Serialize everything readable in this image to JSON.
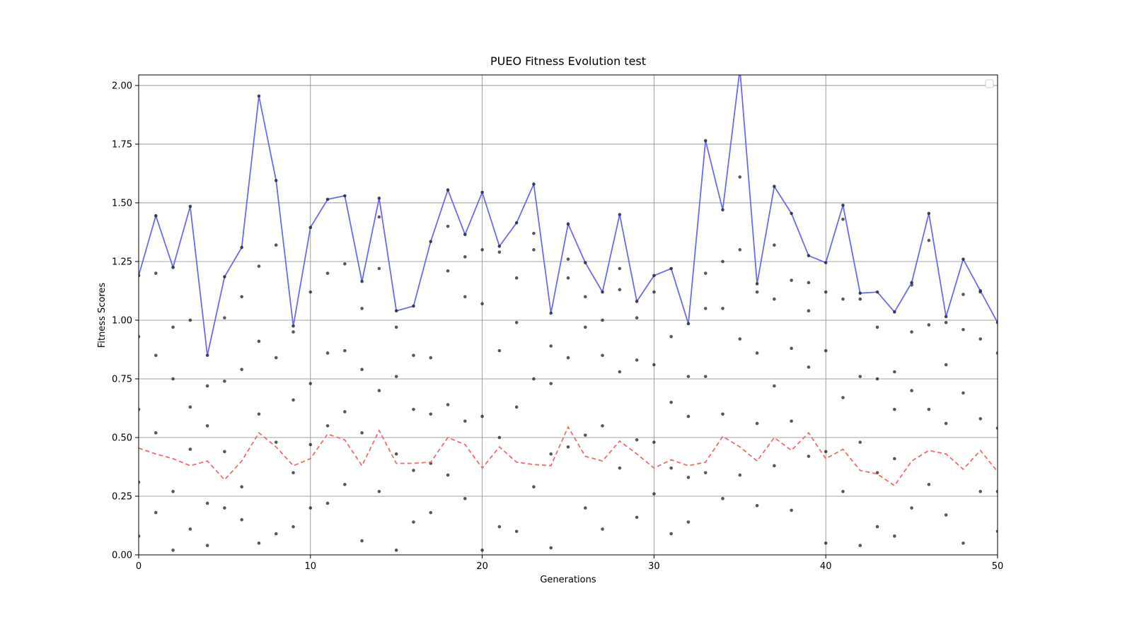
{
  "chart_data": {
    "type": "scatter",
    "title": "PUEO Fitness Evolution test",
    "x_label": "Generations",
    "y_label": "Fitness Scores",
    "xlim": [
      0,
      50
    ],
    "ylim": [
      0,
      2.045
    ],
    "xticks": [
      0,
      10,
      20,
      30,
      40,
      50
    ],
    "yticks": [
      {
        "value": 0,
        "label": "0.00"
      },
      {
        "value": 0.25,
        "label": "0.25"
      },
      {
        "value": 0.5,
        "label": "0.50"
      },
      {
        "value": 0.75,
        "label": "0.75"
      },
      {
        "value": 1,
        "label": "1.00"
      },
      {
        "value": 1.25,
        "label": "1.25"
      },
      {
        "value": 1.5,
        "label": "1.50"
      },
      {
        "value": 1.75,
        "label": "1.75"
      },
      {
        "value": 2,
        "label": "2.00"
      }
    ],
    "grid": true,
    "series": [
      {
        "style": "points",
        "color": "#000000",
        "x": [
          0,
          0,
          0,
          0,
          1,
          1,
          1,
          1,
          2,
          2,
          2,
          2,
          3,
          3,
          3,
          3,
          4,
          4,
          4,
          4,
          5,
          5,
          5,
          5,
          6,
          6,
          6,
          6,
          7,
          7,
          7,
          7,
          8,
          8,
          8,
          8,
          9,
          9,
          9,
          9,
          10,
          10,
          10,
          10,
          11,
          11,
          11,
          11,
          12,
          12,
          12,
          12,
          13,
          13,
          13,
          13,
          14,
          14,
          14,
          14,
          15,
          15,
          15,
          15,
          16,
          16,
          16,
          16,
          17,
          17,
          17,
          17,
          18,
          18,
          18,
          18,
          19,
          19,
          19,
          19,
          20,
          20,
          20,
          20,
          21,
          21,
          21,
          21,
          22,
          22,
          22,
          22,
          23,
          23,
          23,
          23,
          24,
          24,
          24,
          24,
          25,
          25,
          25,
          25,
          26,
          26,
          26,
          26,
          27,
          27,
          27,
          27,
          28,
          28,
          28,
          28,
          29,
          29,
          29,
          29,
          30,
          30,
          30,
          30,
          31,
          31,
          31,
          31,
          32,
          32,
          32,
          32,
          33,
          33,
          33,
          33,
          34,
          34,
          34,
          34,
          35,
          35,
          35,
          35,
          36,
          36,
          36,
          36,
          37,
          37,
          37,
          37,
          38,
          38,
          38,
          38,
          39,
          39,
          39,
          39,
          40,
          40,
          40,
          40,
          41,
          41,
          41,
          41,
          42,
          42,
          42,
          42,
          43,
          43,
          43,
          43,
          44,
          44,
          44,
          44,
          45,
          45,
          45,
          45,
          46,
          46,
          46,
          46,
          47,
          47,
          47,
          47,
          48,
          48,
          48,
          48,
          49,
          49,
          49,
          49,
          50,
          50,
          50,
          50
        ],
        "values": [
          0.93,
          0.62,
          0.31,
          0.08,
          1.2,
          0.85,
          0.52,
          0.18,
          0.97,
          0.75,
          0.27,
          0.02,
          1.0,
          0.63,
          0.45,
          0.11,
          0.72,
          0.55,
          0.22,
          0.04,
          1.01,
          0.74,
          0.44,
          0.2,
          1.1,
          0.79,
          0.29,
          0.15,
          1.23,
          0.91,
          0.6,
          0.05,
          1.32,
          0.84,
          0.48,
          0.09,
          0.95,
          0.66,
          0.35,
          0.12,
          1.12,
          0.73,
          0.47,
          0.2,
          1.2,
          0.86,
          0.55,
          0.22,
          1.24,
          0.87,
          0.61,
          0.3,
          1.05,
          0.79,
          0.52,
          0.06,
          1.44,
          1.22,
          0.7,
          0.27,
          0.97,
          0.76,
          0.43,
          0.02,
          0.85,
          0.62,
          0.36,
          0.14,
          0.84,
          0.6,
          0.39,
          0.18,
          1.4,
          1.21,
          0.64,
          0.34,
          1.27,
          1.1,
          0.57,
          0.24,
          1.3,
          1.07,
          0.59,
          0.02,
          1.29,
          0.87,
          0.5,
          0.12,
          1.18,
          0.99,
          0.63,
          0.1,
          1.37,
          1.3,
          0.75,
          0.29,
          0.89,
          0.73,
          0.43,
          0.03,
          1.26,
          1.18,
          0.84,
          0.46,
          1.1,
          0.97,
          0.51,
          0.2,
          1.0,
          0.85,
          0.55,
          0.11,
          1.22,
          1.13,
          0.78,
          0.37,
          1.01,
          0.83,
          0.49,
          0.16,
          1.12,
          0.81,
          0.48,
          0.26,
          0.93,
          0.65,
          0.37,
          0.09,
          0.76,
          0.59,
          0.33,
          0.14,
          1.2,
          1.05,
          0.76,
          0.35,
          1.25,
          1.05,
          0.6,
          0.24,
          1.61,
          1.3,
          0.92,
          0.34,
          1.12,
          0.86,
          0.56,
          0.21,
          1.32,
          1.09,
          0.72,
          0.38,
          1.17,
          0.88,
          0.57,
          0.19,
          1.16,
          1.04,
          0.8,
          0.42,
          1.12,
          0.87,
          0.44,
          0.05,
          1.43,
          1.09,
          0.67,
          0.27,
          1.09,
          0.76,
          0.48,
          0.04,
          0.97,
          0.75,
          0.35,
          0.12,
          0.78,
          0.62,
          0.41,
          0.08,
          1.15,
          0.95,
          0.7,
          0.2,
          1.34,
          0.98,
          0.62,
          0.3,
          0.99,
          0.81,
          0.56,
          0.17,
          1.11,
          0.96,
          0.69,
          0.05,
          1.12,
          0.92,
          0.58,
          0.27,
          0.86,
          0.54,
          0.27,
          0.1
        ]
      },
      {
        "style": "line",
        "color": "#6b6bf0",
        "x": [
          0,
          1,
          2,
          3,
          4,
          5,
          6,
          7,
          8,
          9,
          10,
          11,
          12,
          13,
          14,
          15,
          16,
          17,
          18,
          19,
          20,
          21,
          22,
          23,
          24,
          25,
          26,
          27,
          28,
          29,
          30,
          31,
          32,
          33,
          34,
          35,
          36,
          37,
          38,
          39,
          40,
          41,
          42,
          43,
          44,
          45,
          46,
          47,
          48,
          49,
          50
        ],
        "values": [
          1.19,
          1.445,
          1.225,
          1.485,
          0.85,
          1.185,
          1.31,
          1.955,
          1.595,
          0.975,
          1.395,
          1.515,
          1.53,
          1.165,
          1.52,
          1.04,
          1.06,
          1.335,
          1.555,
          1.365,
          1.545,
          1.315,
          1.415,
          1.58,
          1.03,
          1.41,
          1.245,
          1.12,
          1.45,
          1.08,
          1.19,
          1.22,
          0.985,
          1.765,
          1.47,
          2.07,
          1.155,
          1.57,
          1.455,
          1.275,
          1.245,
          1.49,
          1.115,
          1.12,
          1.035,
          1.16,
          1.455,
          1.015,
          1.26,
          1.125,
          0.99
        ]
      },
      {
        "style": "dashed",
        "color": "#f06b6b",
        "x": [
          0,
          1,
          2,
          3,
          4,
          5,
          6,
          7,
          8,
          9,
          10,
          11,
          12,
          13,
          14,
          15,
          16,
          17,
          18,
          19,
          20,
          21,
          22,
          23,
          24,
          25,
          26,
          27,
          28,
          29,
          30,
          31,
          32,
          33,
          34,
          35,
          36,
          37,
          38,
          39,
          40,
          41,
          42,
          43,
          44,
          45,
          46,
          47,
          48,
          49,
          50
        ],
        "values": [
          0.455,
          0.43,
          0.41,
          0.38,
          0.4,
          0.32,
          0.4,
          0.52,
          0.46,
          0.38,
          0.41,
          0.515,
          0.49,
          0.38,
          0.53,
          0.39,
          0.39,
          0.395,
          0.5,
          0.47,
          0.37,
          0.46,
          0.395,
          0.385,
          0.38,
          0.545,
          0.42,
          0.4,
          0.485,
          0.43,
          0.37,
          0.405,
          0.38,
          0.395,
          0.505,
          0.46,
          0.4,
          0.5,
          0.445,
          0.52,
          0.41,
          0.45,
          0.36,
          0.345,
          0.295,
          0.4,
          0.445,
          0.43,
          0.365,
          0.445,
          0.355
        ]
      }
    ]
  }
}
